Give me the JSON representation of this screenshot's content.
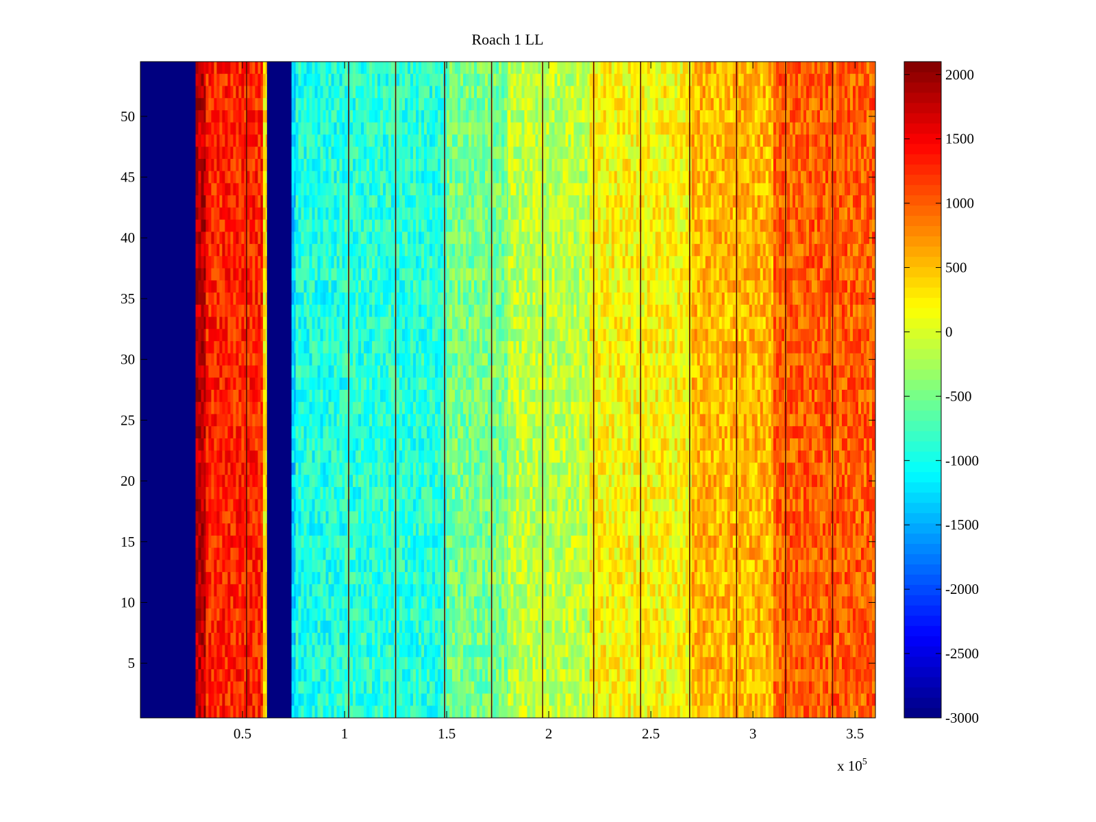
{
  "chart_data": {
    "type": "heatmap",
    "title": "Roach 1 LL",
    "xlabel": "",
    "ylabel": "",
    "x_exponent_label": "x 10",
    "x_exponent_power": "5",
    "xlim": [
      0,
      3.6
    ],
    "ylim": [
      0.5,
      54.5
    ],
    "x_scale_note": "x values multiplied by 10^5",
    "x_ticks": [
      {
        "value": 0.5,
        "label": "0.5"
      },
      {
        "value": 1,
        "label": "1"
      },
      {
        "value": 1.5,
        "label": "1.5"
      },
      {
        "value": 2,
        "label": "2"
      },
      {
        "value": 2.5,
        "label": "2.5"
      },
      {
        "value": 3,
        "label": "3"
      },
      {
        "value": 3.5,
        "label": "3.5"
      }
    ],
    "y_ticks": [
      {
        "value": 5,
        "label": "5"
      },
      {
        "value": 10,
        "label": "10"
      },
      {
        "value": 15,
        "label": "15"
      },
      {
        "value": 20,
        "label": "20"
      },
      {
        "value": 25,
        "label": "25"
      },
      {
        "value": 30,
        "label": "30"
      },
      {
        "value": 35,
        "label": "35"
      },
      {
        "value": 40,
        "label": "40"
      },
      {
        "value": 45,
        "label": "45"
      },
      {
        "value": 50,
        "label": "50"
      }
    ],
    "rows": 54,
    "colorbar": {
      "colormap": "jet",
      "clim": [
        -3000,
        2100
      ],
      "ticks": [
        {
          "value": 2000,
          "label": "2000"
        },
        {
          "value": 1500,
          "label": "1500"
        },
        {
          "value": 1000,
          "label": "1000"
        },
        {
          "value": 500,
          "label": "500"
        },
        {
          "value": 0,
          "label": "0"
        },
        {
          "value": -500,
          "label": "-500"
        },
        {
          "value": -1000,
          "label": "-1000"
        },
        {
          "value": -1500,
          "label": "-1500"
        },
        {
          "value": -2000,
          "label": "-2000"
        },
        {
          "value": -2500,
          "label": "-2500"
        },
        {
          "value": -3000,
          "label": "-3000"
        }
      ]
    },
    "column_profile": [
      {
        "x_start": 0.0,
        "x_end": 0.27,
        "value": -3000
      },
      {
        "x_start": 0.27,
        "x_end": 0.32,
        "value": 1800
      },
      {
        "x_start": 0.32,
        "x_end": 0.6,
        "value": 1300
      },
      {
        "x_start": 0.6,
        "x_end": 0.62,
        "value": 300
      },
      {
        "x_start": 0.62,
        "x_end": 0.74,
        "value": -3000
      },
      {
        "x_start": 0.74,
        "x_end": 0.76,
        "value": -1300
      },
      {
        "x_start": 0.76,
        "x_end": 1.0,
        "value": -950
      },
      {
        "x_start": 1.0,
        "x_end": 1.5,
        "value": -900
      },
      {
        "x_start": 1.5,
        "x_end": 1.8,
        "value": -500
      },
      {
        "x_start": 1.8,
        "x_end": 2.2,
        "value": -150
      },
      {
        "x_start": 2.2,
        "x_end": 2.7,
        "value": 200
      },
      {
        "x_start": 2.7,
        "x_end": 3.1,
        "value": 550
      },
      {
        "x_start": 3.1,
        "x_end": 3.6,
        "value": 1000
      }
    ],
    "vertical_lines_x": [
      0.52,
      1.02,
      1.25,
      1.49,
      1.72,
      1.97,
      2.22,
      2.45,
      2.69,
      2.92,
      3.16,
      3.39
    ]
  }
}
